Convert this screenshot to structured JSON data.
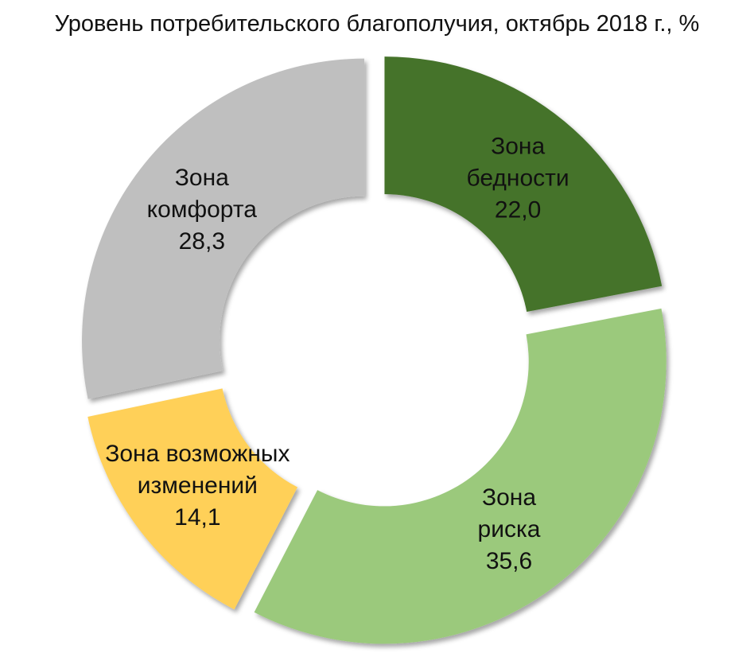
{
  "chart_data": {
    "type": "pie",
    "variant": "donut-exploded",
    "title": "Уровень потребительского благополучия, октябрь 2018 г., %",
    "unit": "%",
    "legend": "none",
    "slices": [
      {
        "name_lines": [
          "Зона",
          "бедности"
        ],
        "value": 22.0,
        "value_label": "22,0",
        "color": "#44732A"
      },
      {
        "name_lines": [
          "Зона",
          "риска"
        ],
        "value": 35.6,
        "value_label": "35,6",
        "color": "#9BC97C"
      },
      {
        "name_lines": [
          "Зона возможных",
          "изменений"
        ],
        "value": 14.1,
        "value_label": "14,1",
        "color": "#FFD059"
      },
      {
        "name_lines": [
          "Зона",
          "комфорта"
        ],
        "value": 28.3,
        "value_label": "28,3",
        "color": "#BFBFBF"
      }
    ]
  }
}
